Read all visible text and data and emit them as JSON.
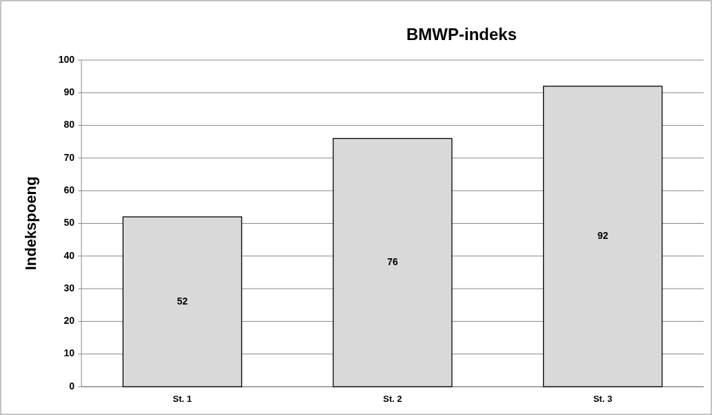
{
  "chart_data": {
    "type": "bar",
    "title": "BMWP-indeks",
    "ylabel": "Indekspoeng",
    "categories": [
      "St. 1",
      "St. 2",
      "St. 3"
    ],
    "values": [
      52,
      76,
      92
    ],
    "color": "#d9d9d9",
    "ylim": [
      0,
      100
    ],
    "yticks": [
      0,
      10,
      20,
      30,
      40,
      50,
      60,
      70,
      80,
      90,
      100
    ],
    "grid": "y",
    "data_labels": true
  }
}
